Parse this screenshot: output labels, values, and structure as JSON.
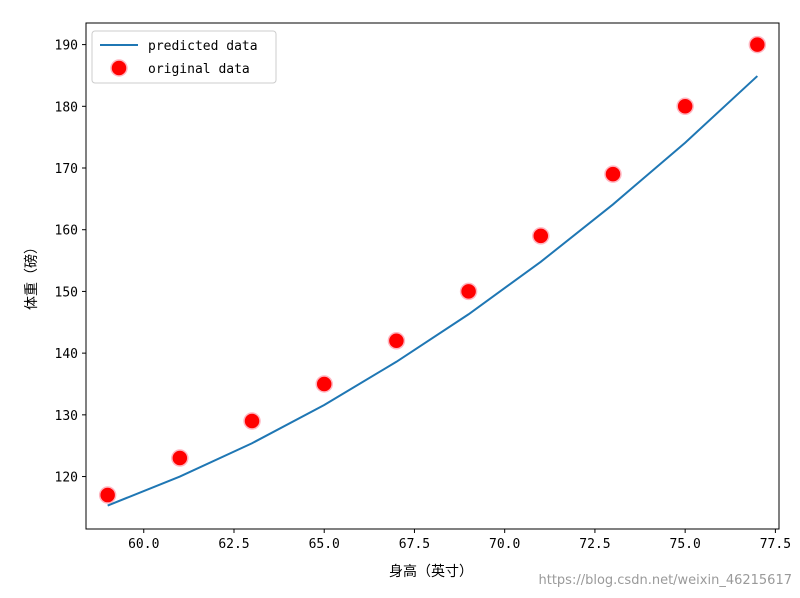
{
  "chart_data": {
    "type": "line",
    "title": "",
    "xlabel": "身高（英寸）",
    "ylabel": "体重（磅）",
    "xlim": [
      58.4,
      77.6
    ],
    "ylim": [
      111.5,
      193.5
    ],
    "xticks": [
      60.0,
      62.5,
      65.0,
      67.5,
      70.0,
      72.5,
      75.0,
      77.5
    ],
    "xtick_labels": [
      "60.0",
      "62.5",
      "65.0",
      "67.5",
      "70.0",
      "72.5",
      "75.0",
      "77.5"
    ],
    "yticks": [
      120,
      130,
      140,
      150,
      160,
      170,
      180,
      190
    ],
    "ytick_labels": [
      "120",
      "130",
      "140",
      "150",
      "160",
      "170",
      "180",
      "190"
    ],
    "grid": false,
    "legend": "top-left",
    "series": [
      {
        "name": "predicted data",
        "kind": "line",
        "color": "#1f77b4",
        "x": [
          59,
          61,
          63,
          65,
          67,
          69,
          71,
          73,
          75,
          77
        ],
        "y": [
          115.3,
          120.0,
          125.4,
          131.6,
          138.6,
          146.3,
          154.8,
          164.1,
          174.1,
          184.9
        ]
      },
      {
        "name": "original data",
        "kind": "scatter",
        "color": "#ff0000",
        "edgecolor": "#ffb6c1",
        "x": [
          59,
          61,
          63,
          65,
          67,
          69,
          71,
          73,
          75,
          77
        ],
        "y": [
          117,
          123,
          129,
          135,
          142,
          150,
          159,
          169,
          180,
          190
        ]
      }
    ]
  },
  "watermark": "https://blog.csdn.net/weixin_46215617"
}
